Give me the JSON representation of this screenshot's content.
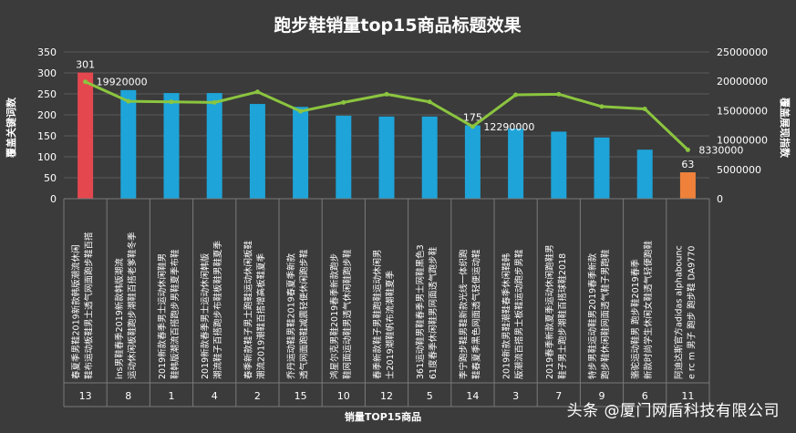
{
  "chart_data": {
    "type": "bar",
    "title": "跑步鞋销量top15商品标题效果",
    "xlabel": "销量TOP15商品",
    "ylabel_left": "覆盖关键词数",
    "ylabel_right": "覆盖展现指数",
    "ylim_left": [
      0,
      350
    ],
    "yticks_left": [
      "0",
      "50",
      "100",
      "150",
      "200",
      "250",
      "300",
      "350"
    ],
    "ylim_right": [
      0,
      25000000
    ],
    "yticks_right": [
      "0",
      "5000000",
      "10000000",
      "15000000",
      "20000000",
      "25000000"
    ],
    "grid": true,
    "legend": "none",
    "categories": [
      {
        "name": "春夏季男鞋2019新款韩版潮流休闲鞋布运动板鞋男士透气网面跑步鞋百搭",
        "rank": "13"
      },
      {
        "name": "ins男鞋春季2019新款韩版潮流运动休闲板鞋跑步潮鞋百搭老爹鞋冬季",
        "rank": "8"
      },
      {
        "name": "2019新款春季男士运动休闲鞋男鞋韩版潮流百搭跑步男鞋夏季布鞋",
        "rank": "1"
      },
      {
        "name": "2019新款春季男士运动休闲韩版潮流鞋子百搭跑步布鞋板鞋男鞋夏季",
        "rank": "4"
      },
      {
        "name": "春季新款鞋子男士跑鞋运动休闲板鞋潮流2019潮鞋百搭增高板鞋夏季",
        "rank": "2"
      },
      {
        "name": "乔丹运动鞋男鞋2019春夏季新款透气网面跑鞋减震轻便休闲跑步鞋",
        "rank": "15"
      },
      {
        "name": "鸿星尔克男鞋2019春季新款跑步鞋网面运动鞋男透气休闲鞋跑步鞋",
        "rank": "10"
      },
      {
        "name": "春季新款鞋子男鞋跑鞋运动休闲男士2019潮鞋帆布流潮鞋夏季",
        "rank": "12"
      },
      {
        "name": "361运动鞋男鞋春季男士网鞋黑色361度春季休闲鞋男网面透气跑步鞋",
        "rank": "5"
      },
      {
        "name": "李宁跑步鞋男鞋新款光线一体织跑鞋春夏季黑色网面透气轻便运动鞋",
        "rank": "14"
      },
      {
        "name": "2019新款男鞋潮鞋春季休闲鞋韩版潮流百搭男士板鞋运动跑步男鞋",
        "rank": "3"
      },
      {
        "name": "2019春季新款夏季运动休闲跑鞋男鞋子男士跑步潮鞋百搭球鞋2018",
        "rank": "7"
      },
      {
        "name": "特步男鞋运动鞋男2019春季新款跑步鞋休闲鞋网面透气鞋子男跑鞋",
        "rank": "9"
      },
      {
        "name": "骆驼运动鞋男 跑步鞋2019春季新款时尚学生休闲女鞋透气轻便跑鞋",
        "rank": "6"
      },
      {
        "name": "阿迪达斯官方adidas alphabounce rc m 男子 跑步 跑步鞋 DA9770",
        "rank": "11"
      }
    ],
    "series": [
      {
        "type": "bar",
        "axis": "left",
        "values": [
          301,
          259,
          252,
          252,
          226,
          219,
          198,
          196,
          196,
          175,
          167,
          160,
          146,
          117,
          63
        ],
        "labels": [
          "301",
          "",
          "",
          "",
          "",
          "",
          "",
          "",
          "",
          "175",
          "",
          "",
          "",
          "",
          "63"
        ]
      },
      {
        "type": "line",
        "axis": "right",
        "values": [
          19920000,
          16600000,
          16500000,
          16400000,
          18200000,
          14900000,
          16400000,
          17800000,
          16500000,
          12290000,
          17700000,
          17800000,
          15700000,
          15300000,
          8330000
        ],
        "labels": [
          "19920000",
          "",
          "",
          "",
          "",
          "",
          "",
          "",
          "",
          "12290000",
          "",
          "",
          "",
          "",
          "8330000"
        ]
      }
    ],
    "colors": {
      "bar_default": "#1ea4d9",
      "bar_top": "#e5474f",
      "bar_bottom": "#f0813a",
      "line": "#8bc53f",
      "text": "#ffffff",
      "grid": "#5b5b5b"
    }
  },
  "watermark": "头条 @厦门网盾科技有限公司"
}
